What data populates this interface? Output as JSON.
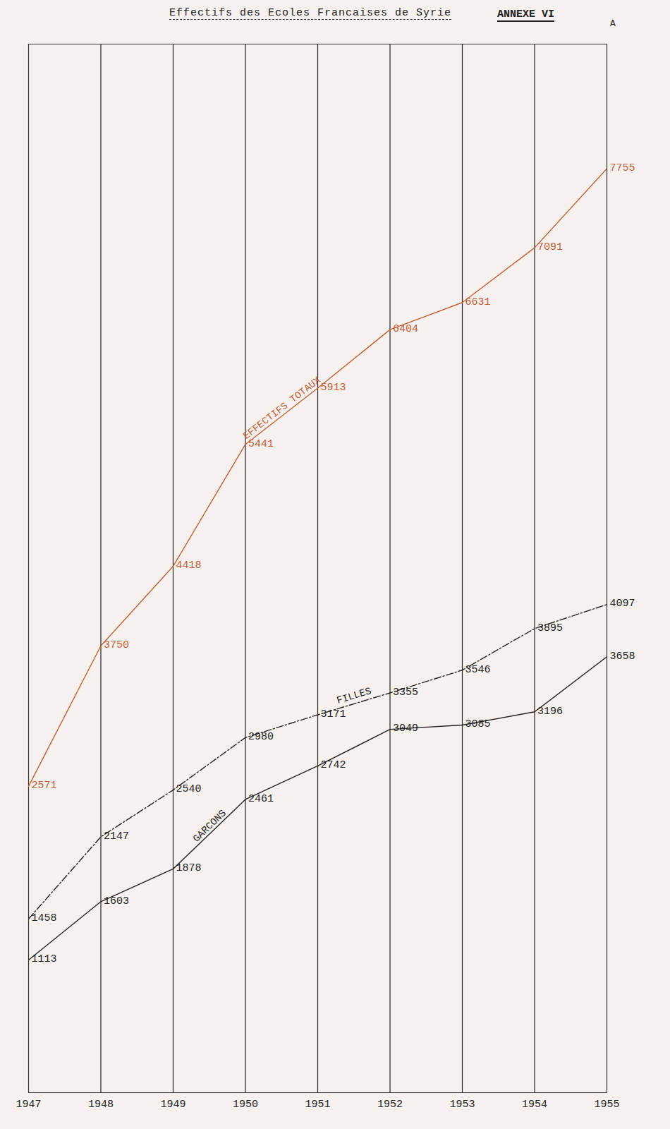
{
  "chart_data": {
    "type": "line",
    "title": "Effectifs des Ecoles Francaises de Syrie",
    "annotations": [
      "ANNEXE VI",
      "A"
    ],
    "x": [
      1947,
      1948,
      1949,
      1950,
      1951,
      1952,
      1953,
      1954,
      1955
    ],
    "xlim": [
      1947,
      1955
    ],
    "xticks": [
      1947,
      1948,
      1949,
      1950,
      1951,
      1952,
      1953,
      1954,
      1955
    ],
    "ylim": [
      0,
      8800
    ],
    "tick_labels": "x",
    "grid": true,
    "data_labels": true,
    "series": [
      {
        "name": "EFFECTIFS TOTAUX",
        "color": "#c0603a",
        "line_style": "solid",
        "values": [
          2571,
          3750,
          4418,
          5441,
          5913,
          6404,
          6631,
          7091,
          7755
        ]
      },
      {
        "name": "FILLES",
        "color": "#222222",
        "line_style": "dashdot",
        "values": [
          1458,
          2147,
          2540,
          2980,
          3171,
          3355,
          3546,
          3895,
          4097
        ]
      },
      {
        "name": "GARCONS",
        "color": "#222222",
        "line_style": "solid",
        "values": [
          1113,
          1603,
          1878,
          2461,
          2742,
          3049,
          3085,
          3196,
          3658
        ]
      }
    ]
  }
}
